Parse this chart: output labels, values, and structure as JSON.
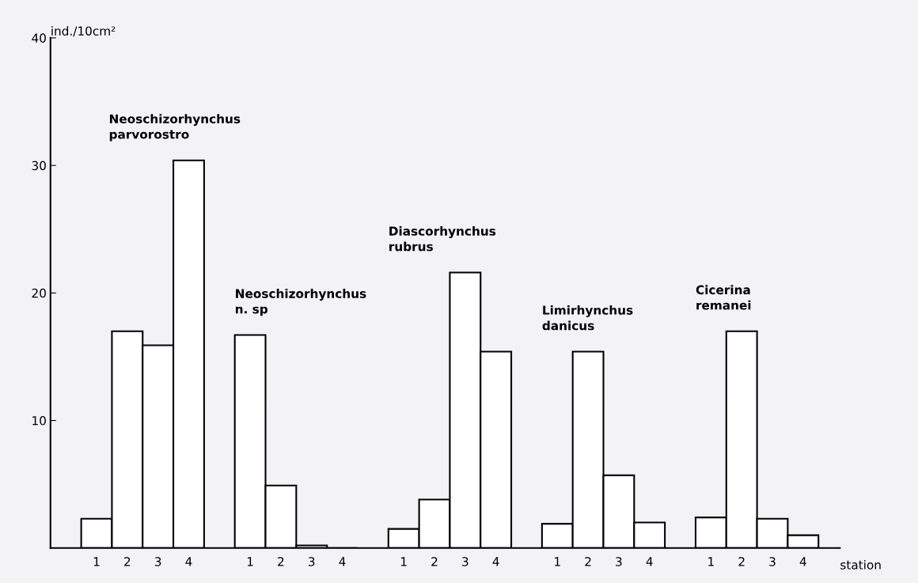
{
  "chart_data": {
    "type": "bar",
    "ylabel": "ind./10cm²",
    "xlabel": "station",
    "categories": [
      "1",
      "2",
      "3",
      "4",
      null,
      "1",
      "2",
      "3",
      "4",
      null,
      "1",
      "2",
      "3",
      "4",
      null,
      "1",
      "2",
      "3",
      "4",
      null,
      "1",
      "2",
      "3",
      "4"
    ],
    "values": [
      2.3,
      17.0,
      15.9,
      30.4,
      null,
      16.7,
      4.9,
      0.2,
      0,
      null,
      1.5,
      3.8,
      21.6,
      15.4,
      null,
      1.9,
      15.4,
      5.7,
      2.0,
      null,
      2.4,
      17.0,
      2.3,
      1.0
    ],
    "color": "#ffffff",
    "annotations": [
      "Neoschizorhynchus\nparvorostro",
      "Neoschizorhynchus\nn. sp",
      "Diascorhynchus\nrubrus",
      "Limirhynchus\ndanicus",
      "Cicerina\nremanei"
    ],
    "ylim": [
      0,
      40
    ],
    "yticks": [
      10,
      20,
      30,
      40
    ],
    "grid": false,
    "legend": false
  }
}
